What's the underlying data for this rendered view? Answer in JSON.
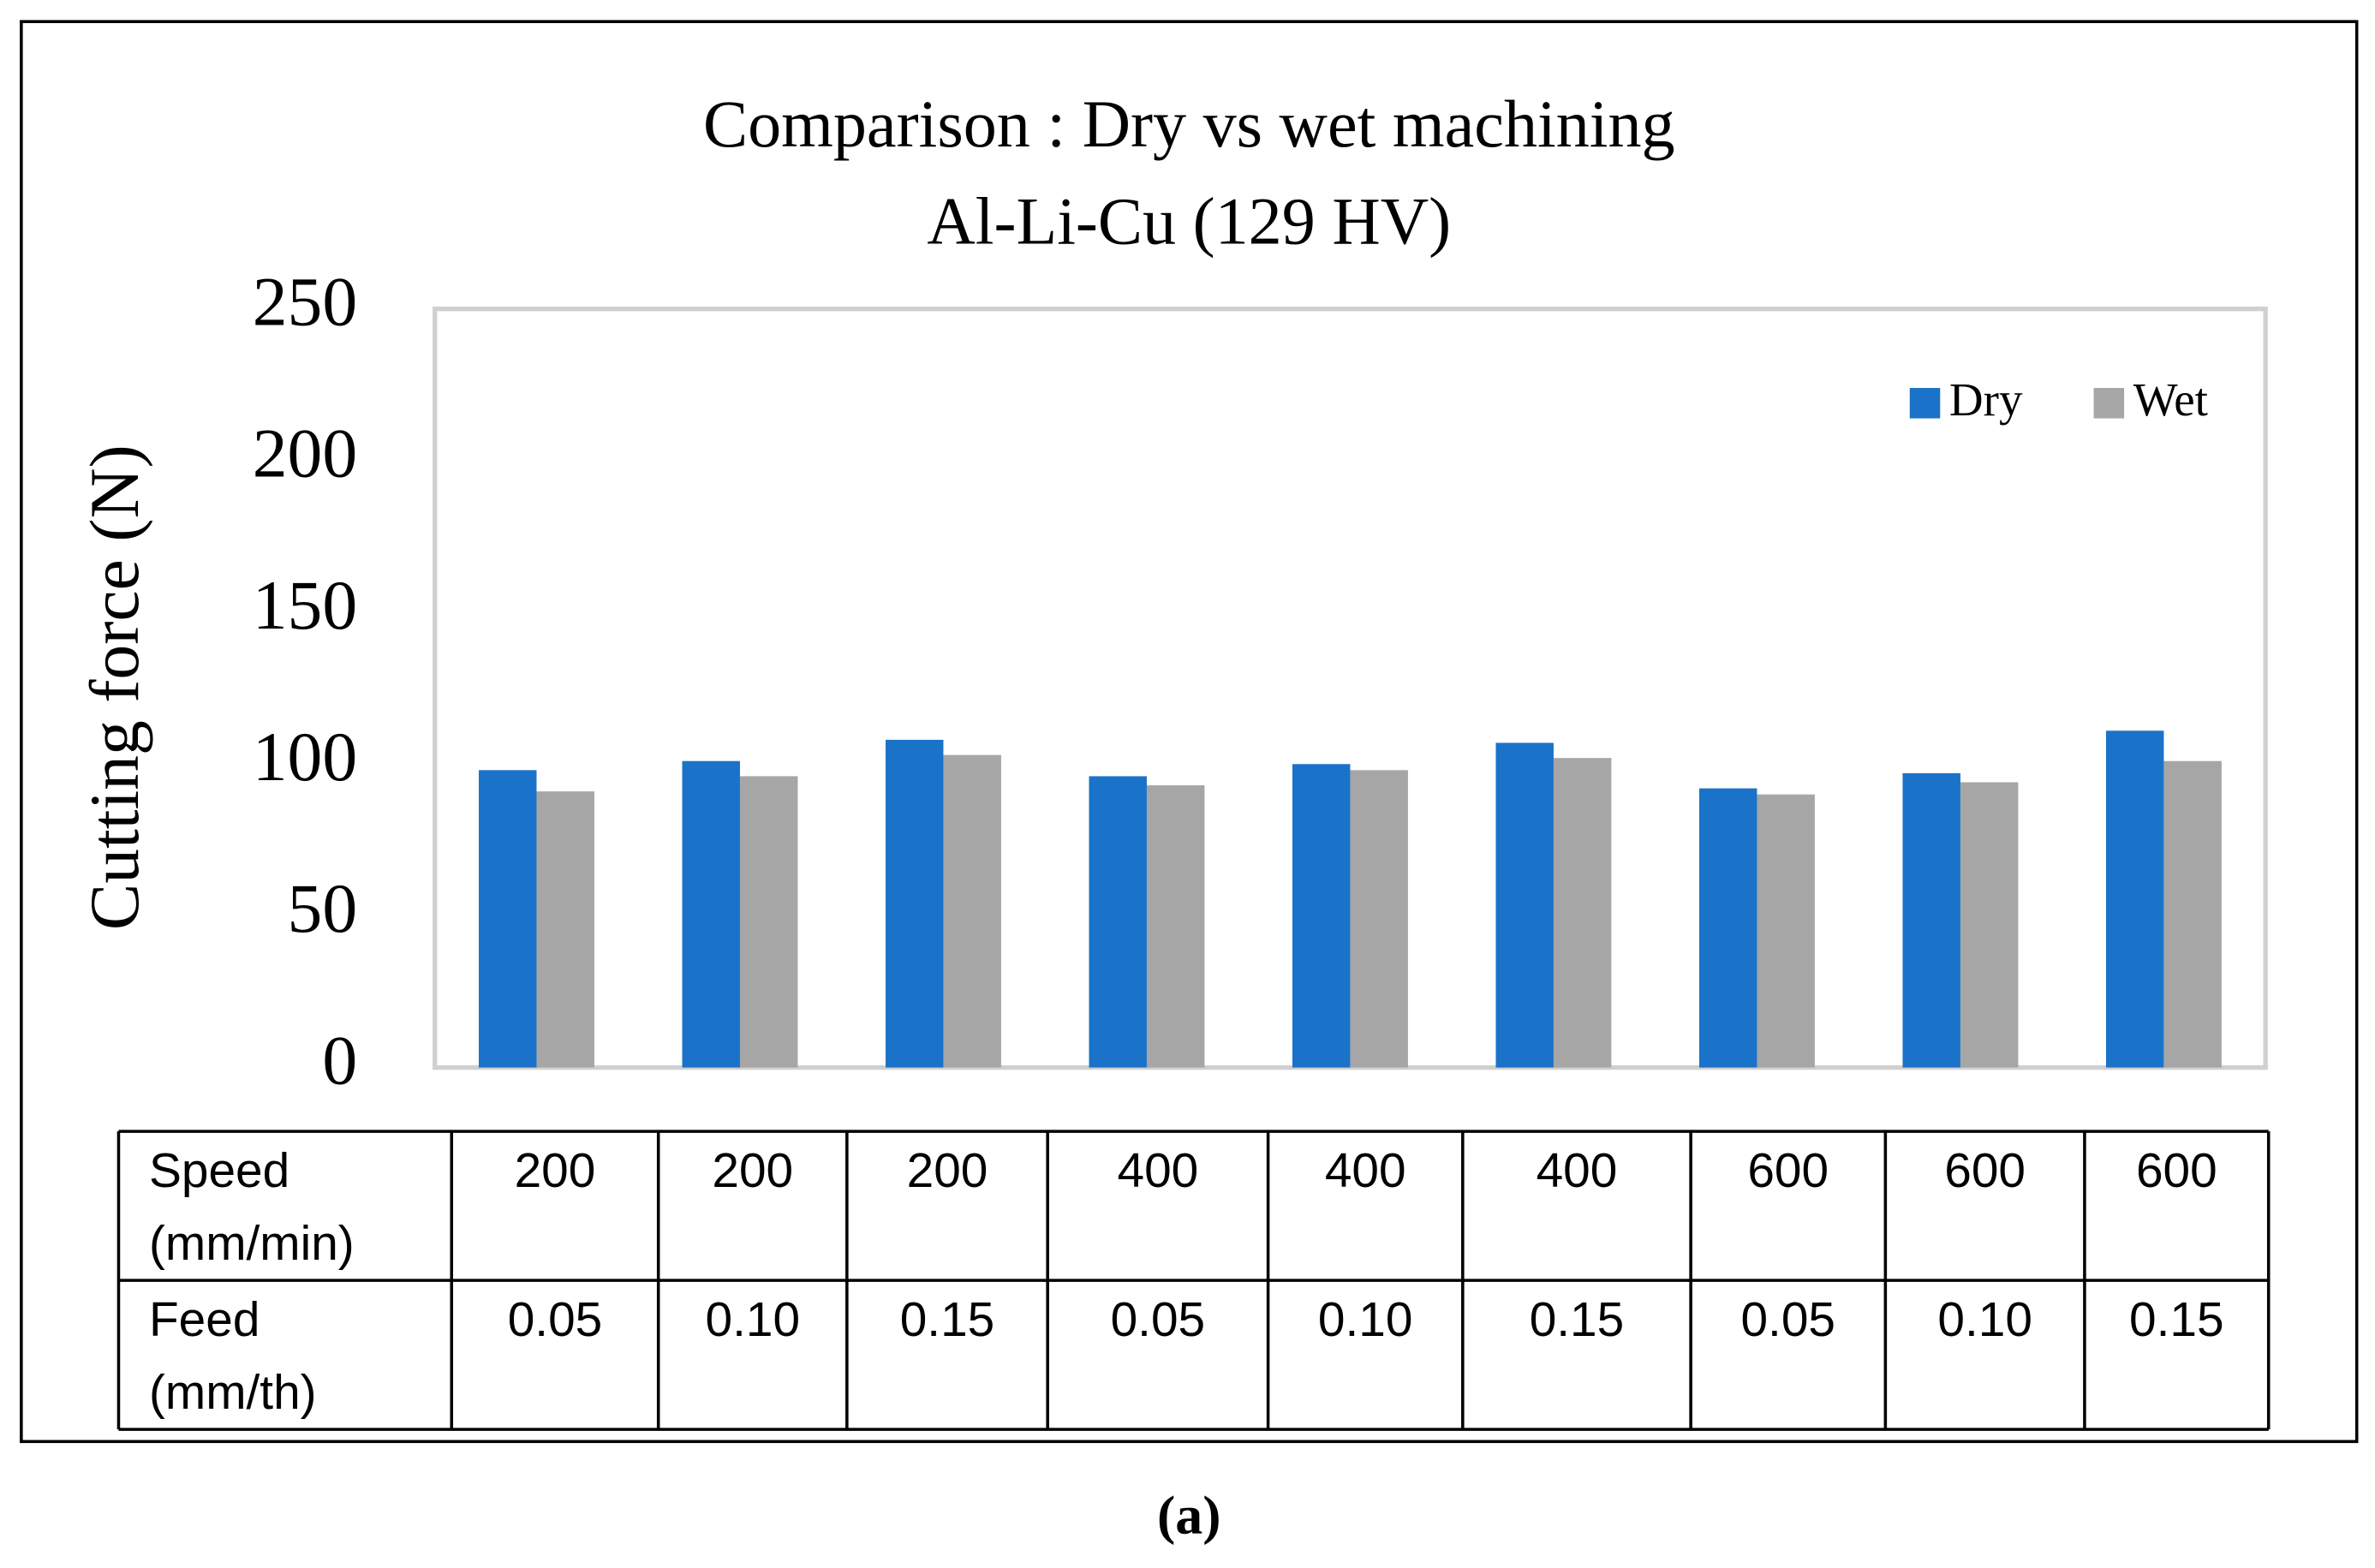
{
  "chart_data": {
    "type": "bar",
    "title": "Comparison : Dry vs wet machining",
    "subtitle": "Al-Li-Cu  (129 HV)",
    "y_label": "Cutting force (N)",
    "categories": [
      null,
      null,
      null,
      null,
      null,
      null,
      null,
      null,
      null
    ],
    "series": [
      {
        "name": "Dry",
        "color": "#1a73c8",
        "values": [
          98,
          101,
          108,
          96,
          100,
          107,
          92,
          97,
          111
        ]
      },
      {
        "name": "Wet",
        "color": "#a6a6a6",
        "values": [
          91,
          96,
          103,
          93,
          98,
          102,
          90,
          94,
          101
        ]
      }
    ],
    "ylim": [
      0,
      250
    ],
    "yticks": [
      0,
      50,
      100,
      150,
      200,
      250
    ],
    "grid": false,
    "legend": "top-right",
    "x_table": {
      "rows": [
        {
          "label": [
            "Speed",
            "(mm/min)"
          ],
          "cells": [
            "200",
            "200",
            "200",
            "400",
            "400",
            "400",
            "600",
            "600",
            "600"
          ]
        },
        {
          "label": [
            "Feed",
            "(mm/th)"
          ],
          "cells": [
            "0.05",
            "0.10",
            "0.15",
            "0.05",
            "0.10",
            "0.15",
            "0.05",
            "0.10",
            "0.15"
          ]
        }
      ]
    }
  },
  "caption": "(a)"
}
